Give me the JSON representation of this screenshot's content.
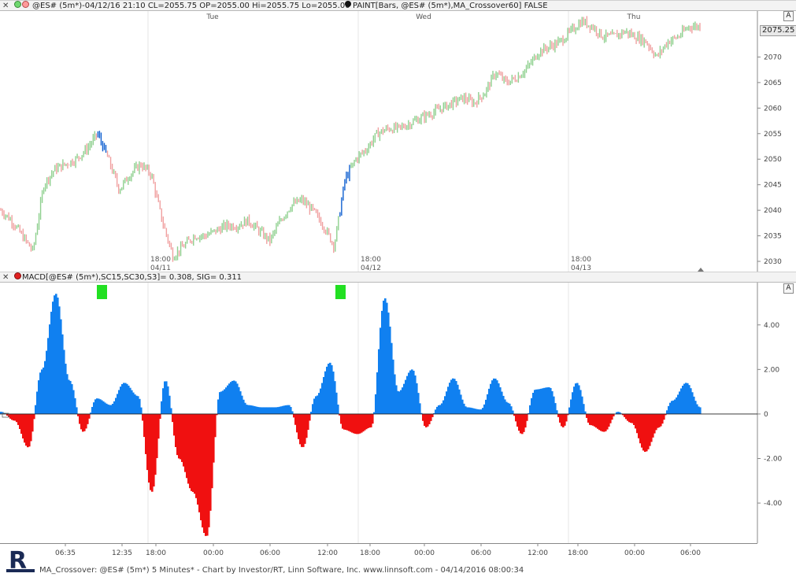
{
  "price_panel": {
    "title": "@ES# (5m*)-04/12/16 21:10  CL=2055.75  OP=2055.00  Hi=2055.75  Lo=2055.00",
    "paint_label": "PAINT[Bars, @ES# (5m*),MA_Crossover60]  FALSE",
    "close_glyph": "✕",
    "autoscale_label": "A",
    "last_price": "2075.25",
    "day_labels": [
      "Tue",
      "Wed",
      "Thu"
    ],
    "time_labels": [
      {
        "time": "18:00",
        "date": "04/11"
      },
      {
        "time": "18:00",
        "date": "04/12"
      },
      {
        "time": "18:00",
        "date": "04/13"
      }
    ]
  },
  "macd_panel": {
    "title": "MACD[@ES# (5m*),SC15,SC30,S3]=   0.308, SIG=   0.311",
    "close_glyph": "✕",
    "autoscale_label": "A"
  },
  "x_axis_labels": [
    "06:35",
    "12:35",
    "18:00",
    "00:00",
    "06:00",
    "12:00",
    "18:00",
    "00:00",
    "06:00",
    "12:00",
    "18:00",
    "00:00",
    "06:00"
  ],
  "footer": {
    "text": "MA_Crossover:  @ES# (5m*) 5 Minutes* - Chart by Investor/RT, Linn Software, Inc.  www.linnsoft.com - 04/14/2016 08:00:34",
    "logo_letter": "R"
  },
  "colors": {
    "bar_up": "#8fd08f",
    "bar_down": "#f0a0a0",
    "bar_paint": "#1060d0",
    "hist_positive": "#1080f0",
    "hist_negative": "#f01010",
    "signal_marker": "#22e022"
  },
  "chart_data": [
    {
      "type": "line",
      "title": "",
      "series": [
        {
          "name": "",
          "values": [
            2040,
            2038,
            2035,
            2032,
            2045,
            2048,
            2049,
            2050,
            2052,
            2055,
            2050,
            2044,
            2047,
            2049,
            2047,
            2038,
            2031,
            2033,
            2035,
            2035,
            2036,
            2037,
            2037,
            2038,
            2036,
            2034,
            2038,
            2041,
            2042,
            2040,
            2037,
            2033,
            2046,
            2050,
            2052,
            2055,
            2056,
            2056,
            2057,
            2058,
            2059,
            2060,
            2061,
            2062,
            2061,
            2063,
            2067,
            2065,
            2066,
            2068,
            2071,
            2072,
            2073,
            2075,
            2077,
            2076,
            2074,
            2074,
            2075,
            2074,
            2073,
            2070,
            2073,
            2074,
            2076,
            2076
          ]
        }
      ],
      "y_ticks": [
        2030,
        2035,
        2040,
        2045,
        2050,
        2055,
        2060,
        2065,
        2070
      ],
      "ylim": [
        2028,
        2079
      ]
    },
    {
      "type": "area",
      "title": "",
      "series": [
        {
          "name": "MACD",
          "values": [
            0.1,
            -0.3,
            -1.5,
            2.0,
            5.4,
            1.5,
            -0.8,
            0.7,
            0.4,
            1.4,
            0.8,
            -3.5,
            1.5,
            -2.0,
            -3.5,
            -5.5,
            1.0,
            1.5,
            0.4,
            0.3,
            0.3,
            0.4,
            -1.5,
            0.8,
            2.3,
            -0.7,
            -0.9,
            -0.6,
            5.2,
            1.0,
            2.0,
            -0.6,
            0.4,
            1.6,
            0.3,
            0.2,
            1.6,
            0.5,
            -0.9,
            1.1,
            1.2,
            -0.6,
            1.4,
            -0.5,
            -0.8,
            0.1,
            -0.4,
            -1.7,
            -0.6,
            0.6,
            1.4,
            0.3
          ]
        }
      ],
      "y_ticks": [
        -4.0,
        -2.0,
        0,
        2.0,
        4.0
      ],
      "ylim": [
        -5.8,
        5.9
      ],
      "signals": [
        {
          "label": "crossover"
        },
        {
          "label": "crossover"
        }
      ]
    }
  ]
}
